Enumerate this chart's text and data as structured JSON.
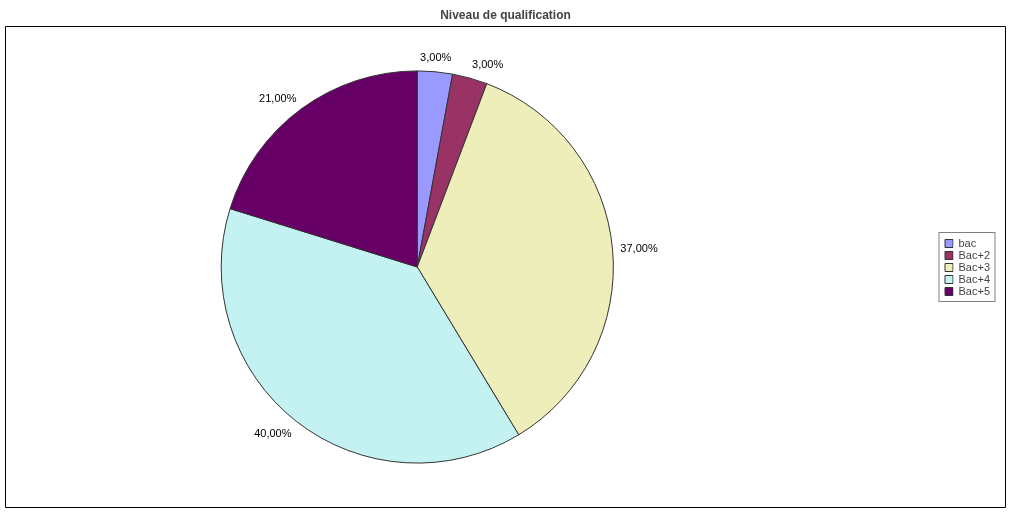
{
  "chart_data": {
    "type": "pie",
    "title": "Niveau de qualification",
    "categories": [
      "bac",
      "Bac+2",
      "Bac+3",
      "Bac+4",
      "Bac+5"
    ],
    "values": [
      3,
      3,
      37,
      40,
      21
    ],
    "colors": [
      "#9999ff",
      "#993366",
      "#eeeebb",
      "#c4f2f2",
      "#660066"
    ],
    "value_labels": [
      "3,00%",
      "3,00%",
      "37,00%",
      "40,00%",
      "21,00%"
    ],
    "legend": "right"
  }
}
